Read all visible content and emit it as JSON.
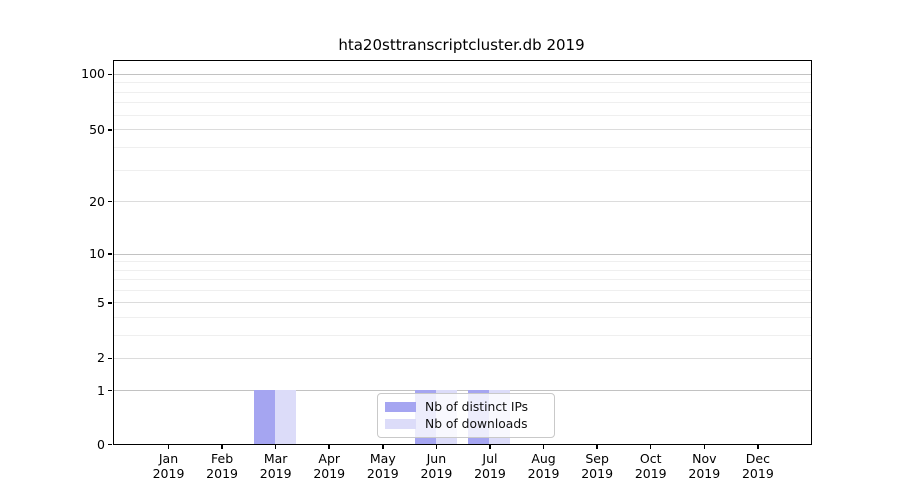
{
  "window": {
    "background": "#ffffff"
  },
  "chart_data": {
    "type": "bar",
    "title": "hta20sttranscriptcluster.db 2019",
    "year": "2019",
    "months": [
      "Jan",
      "Feb",
      "Mar",
      "Apr",
      "May",
      "Jun",
      "Jul",
      "Aug",
      "Sep",
      "Oct",
      "Nov",
      "Dec"
    ],
    "series": [
      {
        "name": "Nb of distinct IPs",
        "color": "#a5a5f1",
        "values": [
          0,
          0,
          1,
          0,
          0,
          1,
          1,
          0,
          0,
          0,
          0,
          0
        ]
      },
      {
        "name": "Nb of downloads",
        "color": "#dcdcf9",
        "values": [
          0,
          0,
          1,
          0,
          0,
          1,
          1,
          0,
          0,
          0,
          0,
          0
        ]
      }
    ],
    "yticks": [
      0,
      1,
      2,
      5,
      10,
      20,
      50,
      100
    ],
    "minor_gridlines": [
      3,
      4,
      6,
      7,
      8,
      9,
      30,
      40,
      60,
      70,
      80,
      90
    ],
    "mid_gridlines": [
      2,
      5,
      20,
      50
    ],
    "major_gridlines": [
      1,
      10,
      100
    ],
    "yscale": "log-like",
    "ylim": [
      0,
      117
    ],
    "xlabel": "",
    "ylabel": "",
    "grid": "horizontal",
    "legend_position": "lower center"
  }
}
